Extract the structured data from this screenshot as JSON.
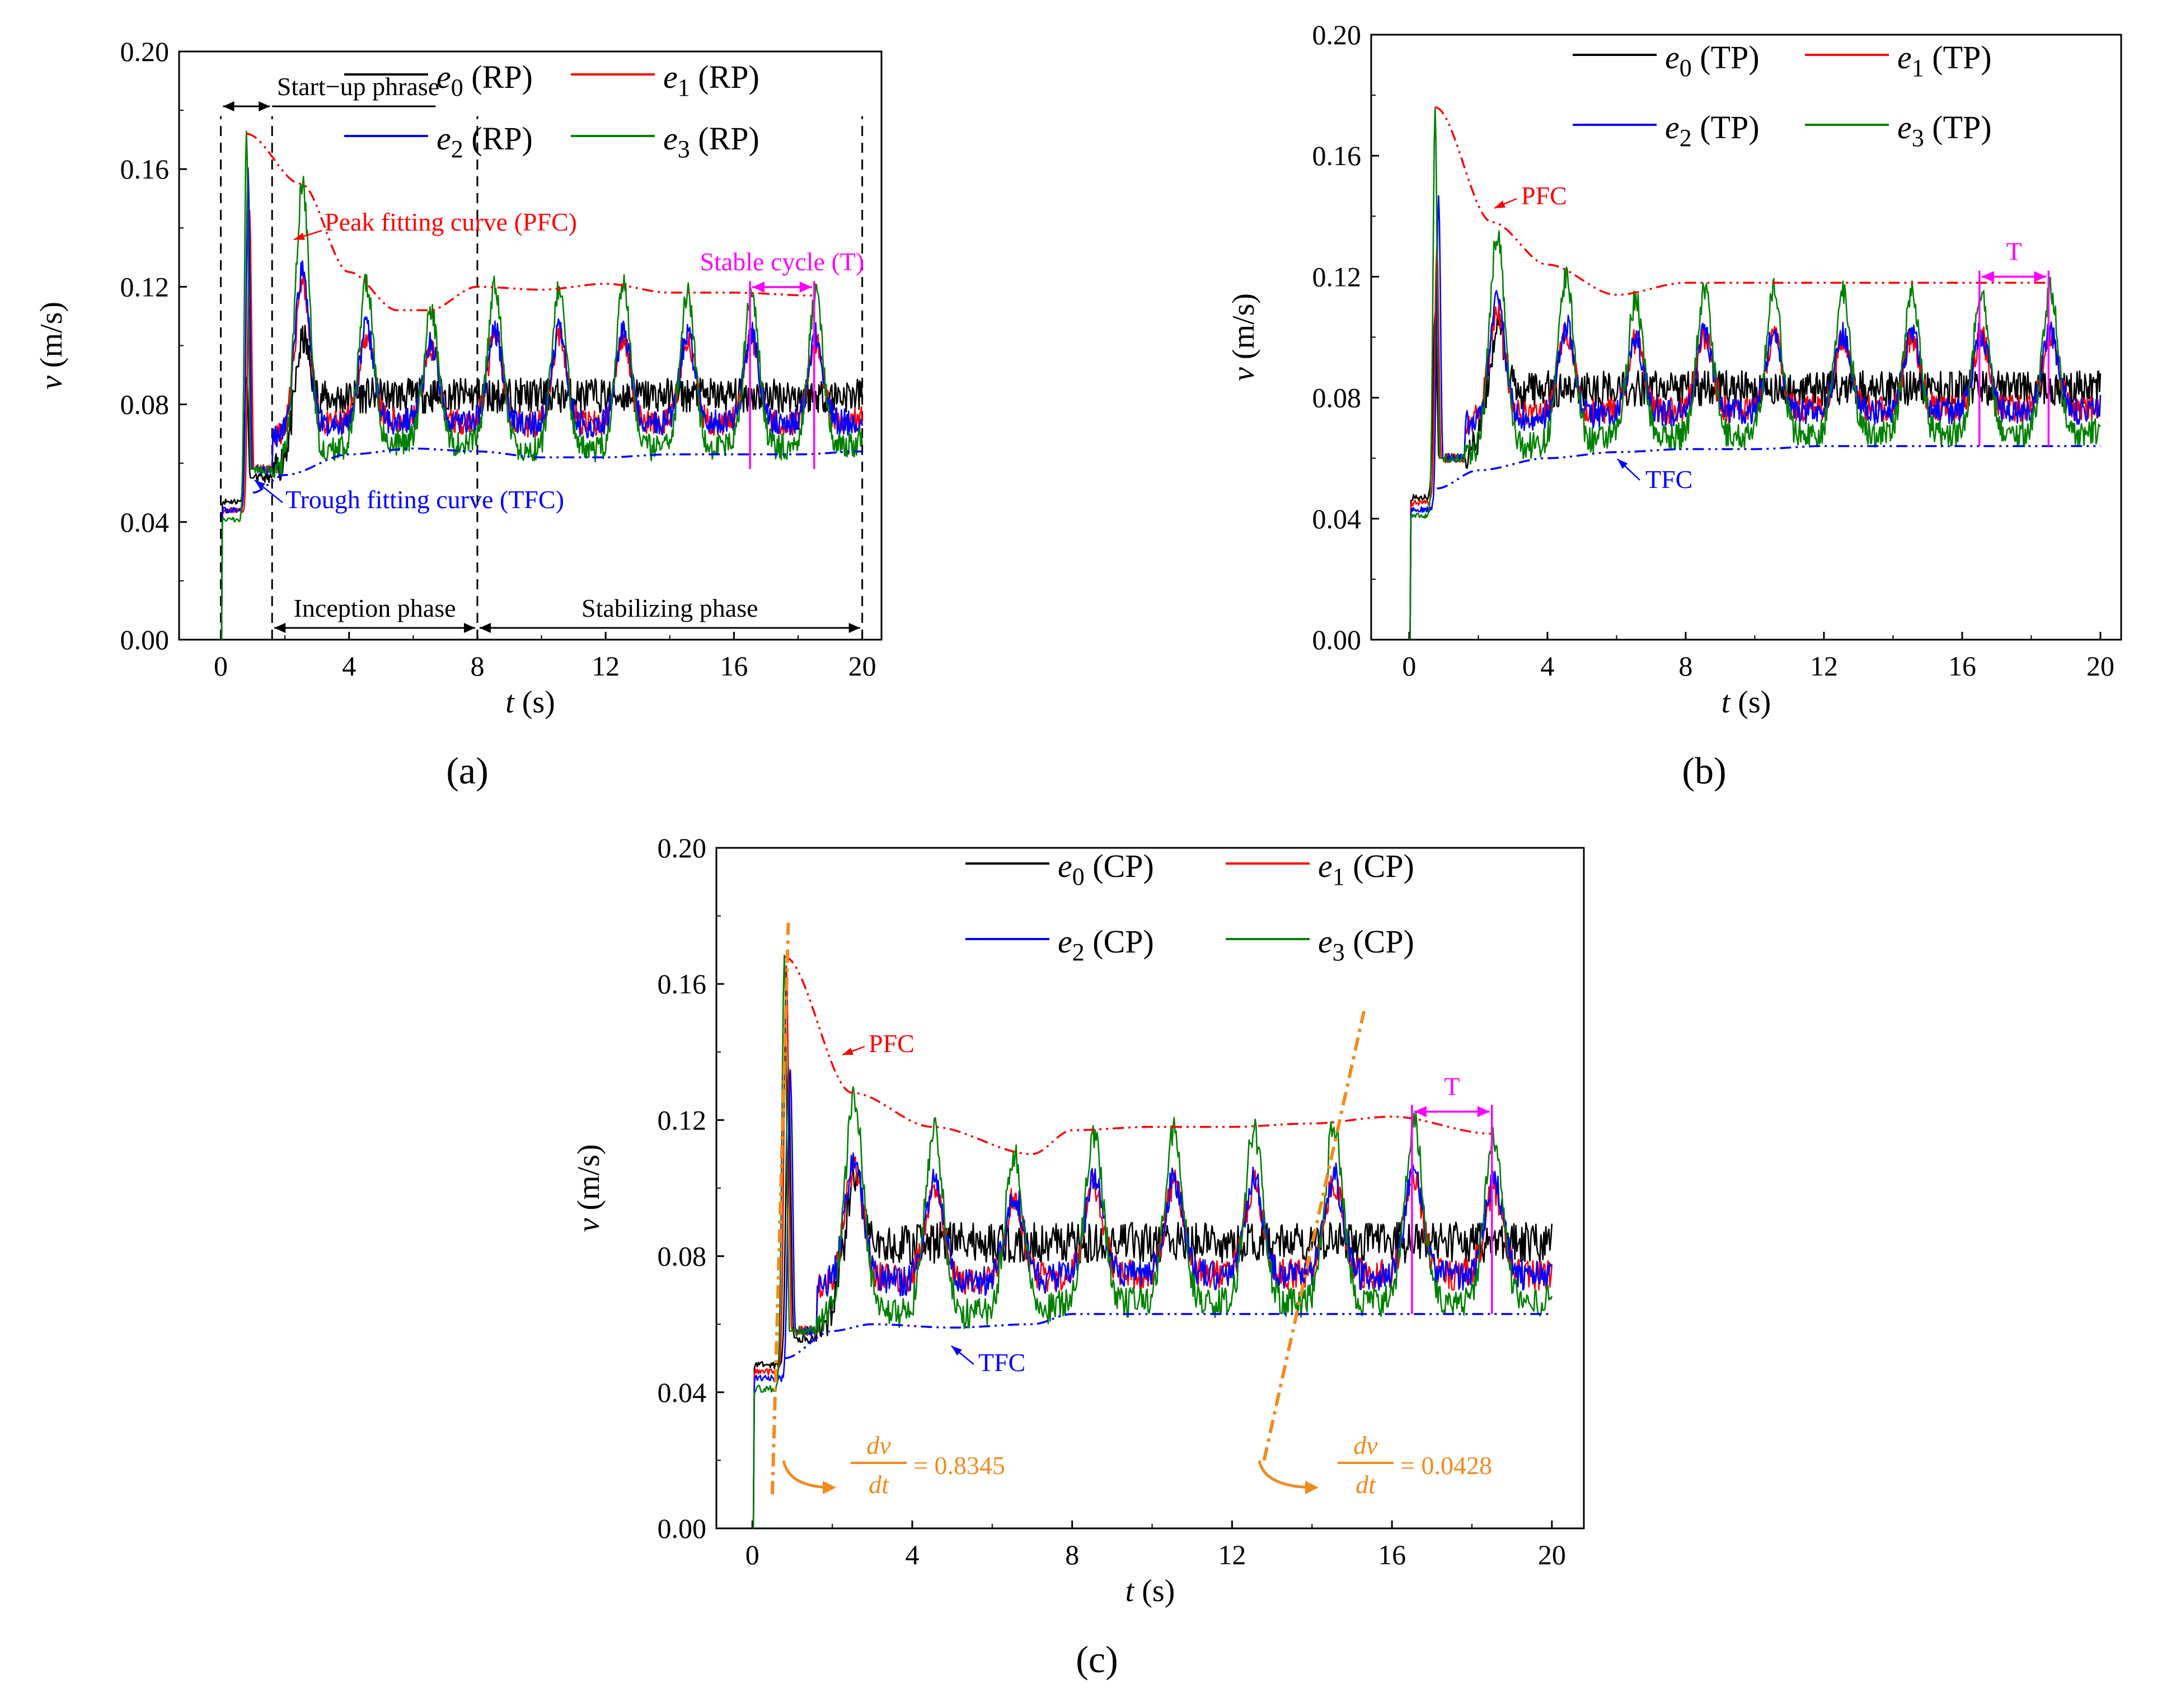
{
  "chart_data": [
    {
      "id": "a",
      "type": "line",
      "panel_label": "(a)",
      "xlabel": {
        "var": "t",
        "unit": "(s)"
      },
      "ylabel": {
        "var": "v",
        "unit": "(m/s)"
      },
      "xlim": [
        -1.3,
        20.6
      ],
      "ylim": [
        0,
        0.2
      ],
      "xticks": [
        "0",
        "4",
        "8",
        "12",
        "16",
        "20"
      ],
      "yticks": [
        "0.00",
        "0.04",
        "0.08",
        "0.12",
        "0.16",
        "0.20"
      ],
      "legend": [
        {
          "sym": "e",
          "sub": "0",
          "suffix": "(RP)",
          "color": "#000000"
        },
        {
          "sym": "e",
          "sub": "1",
          "suffix": "(RP)",
          "color": "#ff0000"
        },
        {
          "sym": "e",
          "sub": "2",
          "suffix": "(RP)",
          "color": "#0000ff"
        },
        {
          "sym": "e",
          "sub": "3",
          "suffix": "(RP)",
          "color": "#008000"
        }
      ],
      "series": [
        {
          "name": "e0",
          "color": "#000000",
          "start": 0.047,
          "peak1": 0.09,
          "peak1_t": 0.8,
          "pre": 0.047,
          "post_early": 0.055,
          "mean": 0.083,
          "amp": 0.004,
          "seed": 11
        },
        {
          "name": "e1",
          "color": "#ff0000",
          "start": 0.044,
          "peak1": 0.145,
          "peak1_t": 0.9,
          "pre": 0.044,
          "post_early": 0.058,
          "mean": 0.084,
          "amp": 0.014,
          "seed": 23
        },
        {
          "name": "e2",
          "color": "#0000ff",
          "start": 0.044,
          "peak1": 0.16,
          "peak1_t": 0.85,
          "pre": 0.044,
          "post_early": 0.058,
          "mean": 0.085,
          "amp": 0.015,
          "seed": 37
        },
        {
          "name": "e3",
          "color": "#008000",
          "start": 0.041,
          "peak1": 0.173,
          "peak1_t": 0.8,
          "pre": 0.041,
          "post_early": 0.058,
          "mean": 0.088,
          "amp": 0.026,
          "seed": 51
        }
      ],
      "peak_curve": {
        "color": "#ff0000",
        "points": [
          [
            0.8,
            0.172
          ],
          [
            2.5,
            0.155
          ],
          [
            4,
            0.125
          ],
          [
            5.5,
            0.112
          ],
          [
            6.5,
            0.112
          ],
          [
            8,
            0.12
          ],
          [
            10,
            0.119
          ],
          [
            12,
            0.121
          ],
          [
            14,
            0.118
          ],
          [
            16,
            0.118
          ],
          [
            18.5,
            0.117
          ]
        ]
      },
      "trough_curve": {
        "color": "#0000ff",
        "points": [
          [
            1,
            0.05
          ],
          [
            2,
            0.056
          ],
          [
            4,
            0.063
          ],
          [
            6,
            0.065
          ],
          [
            8,
            0.064
          ],
          [
            10,
            0.062
          ],
          [
            12,
            0.062
          ],
          [
            14,
            0.063
          ],
          [
            16,
            0.063
          ],
          [
            18,
            0.063
          ],
          [
            20,
            0.064
          ]
        ]
      },
      "phase_lines_t": [
        0,
        1.6,
        8,
        20
      ],
      "annotations": {
        "startup": "Start−up phrase",
        "inception": "Inception phase",
        "stabilizing": "Stabilizing phase",
        "peak_label": "Peak fitting curve (PFC)",
        "trough_label": "Trough fitting curve (TFC)",
        "cycle_label": "Stable cycle (T)"
      },
      "cycle_t": [
        16.5,
        18.5
      ],
      "cycle_color": "#ff00ff"
    },
    {
      "id": "b",
      "type": "line",
      "panel_label": "(b)",
      "xlabel": {
        "var": "t",
        "unit": "(s)"
      },
      "ylabel": {
        "var": "v",
        "unit": "(m/s)"
      },
      "xlim": [
        -1.1,
        20.6
      ],
      "ylim": [
        0,
        0.2
      ],
      "xticks": [
        "0",
        "4",
        "8",
        "12",
        "16",
        "20"
      ],
      "yticks": [
        "0.00",
        "0.04",
        "0.08",
        "0.12",
        "0.16",
        "0.20"
      ],
      "legend": [
        {
          "sym": "e",
          "sub": "0",
          "suffix": "(TP)",
          "color": "#000000"
        },
        {
          "sym": "e",
          "sub": "1",
          "suffix": "(TP)",
          "color": "#ff0000"
        },
        {
          "sym": "e",
          "sub": "2",
          "suffix": "(TP)",
          "color": "#0000ff"
        },
        {
          "sym": "e",
          "sub": "3",
          "suffix": "(TP)",
          "color": "#008000"
        }
      ],
      "series": [
        {
          "name": "e0",
          "color": "#000000",
          "start": 0.047,
          "peak1": 0.108,
          "peak1_t": 0.75,
          "pre": 0.047,
          "post_early": 0.06,
          "mean": 0.083,
          "amp": 0.004,
          "seed": 61
        },
        {
          "name": "e1",
          "color": "#ff0000",
          "start": 0.045,
          "peak1": 0.13,
          "peak1_t": 0.8,
          "pre": 0.045,
          "post_early": 0.06,
          "mean": 0.085,
          "amp": 0.012,
          "seed": 73
        },
        {
          "name": "e2",
          "color": "#0000ff",
          "start": 0.043,
          "peak1": 0.147,
          "peak1_t": 0.85,
          "pre": 0.043,
          "post_early": 0.06,
          "mean": 0.085,
          "amp": 0.013,
          "seed": 89
        },
        {
          "name": "e3",
          "color": "#008000",
          "start": 0.041,
          "peak1": 0.176,
          "peak1_t": 0.75,
          "pre": 0.041,
          "post_early": 0.06,
          "mean": 0.088,
          "amp": 0.024,
          "seed": 97
        }
      ],
      "peak_curve": {
        "color": "#ff0000",
        "points": [
          [
            0.75,
            0.176
          ],
          [
            2.4,
            0.138
          ],
          [
            4,
            0.124
          ],
          [
            6,
            0.114
          ],
          [
            8,
            0.118
          ],
          [
            10,
            0.118
          ],
          [
            12,
            0.118
          ],
          [
            14,
            0.118
          ],
          [
            16,
            0.118
          ],
          [
            18.5,
            0.118
          ]
        ]
      },
      "trough_curve": {
        "color": "#0000ff",
        "points": [
          [
            0.8,
            0.05
          ],
          [
            2,
            0.056
          ],
          [
            4,
            0.06
          ],
          [
            6,
            0.062
          ],
          [
            8,
            0.063
          ],
          [
            10,
            0.063
          ],
          [
            12,
            0.064
          ],
          [
            14,
            0.064
          ],
          [
            16,
            0.064
          ],
          [
            18,
            0.064
          ],
          [
            20,
            0.064
          ]
        ]
      },
      "annotations": {
        "peak_label": "PFC",
        "trough_label": "TFC",
        "cycle_label": "T"
      },
      "cycle_t": [
        16.5,
        18.5
      ],
      "cycle_color": "#ff00ff"
    },
    {
      "id": "c",
      "type": "line",
      "panel_label": "(c)",
      "xlabel": {
        "var": "t",
        "unit": "(s)"
      },
      "ylabel": {
        "var": "v",
        "unit": "(m/s)"
      },
      "xlim": [
        -0.9,
        20.8
      ],
      "ylim": [
        0,
        0.2
      ],
      "xticks": [
        "0",
        "4",
        "8",
        "12",
        "16",
        "20"
      ],
      "yticks": [
        "0.00",
        "0.04",
        "0.08",
        "0.12",
        "0.16",
        "0.20"
      ],
      "legend": [
        {
          "sym": "e",
          "sub": "0",
          "suffix": "(CP)",
          "color": "#000000"
        },
        {
          "sym": "e",
          "sub": "1",
          "suffix": "(CP)",
          "color": "#ff0000"
        },
        {
          "sym": "e",
          "sub": "2",
          "suffix": "(CP)",
          "color": "#0000ff"
        },
        {
          "sym": "e",
          "sub": "3",
          "suffix": "(CP)",
          "color": "#008000"
        }
      ],
      "series": [
        {
          "name": "e0",
          "color": "#000000",
          "start": 0.048,
          "peak1": 0.135,
          "peak1_t": 0.9,
          "pre": 0.048,
          "post_early": 0.056,
          "mean": 0.084,
          "amp": 0.004,
          "seed": 103
        },
        {
          "name": "e1",
          "color": "#ff0000",
          "start": 0.046,
          "peak1": 0.165,
          "peak1_t": 0.85,
          "pre": 0.046,
          "post_early": 0.058,
          "mean": 0.084,
          "amp": 0.013,
          "seed": 113
        },
        {
          "name": "e2",
          "color": "#0000ff",
          "start": 0.044,
          "peak1": 0.135,
          "peak1_t": 0.95,
          "pre": 0.044,
          "post_early": 0.058,
          "mean": 0.085,
          "amp": 0.014,
          "seed": 127
        },
        {
          "name": "e3",
          "color": "#008000",
          "start": 0.041,
          "peak1": 0.168,
          "peak1_t": 0.8,
          "pre": 0.041,
          "post_early": 0.058,
          "mean": 0.088,
          "amp": 0.025,
          "seed": 137
        }
      ],
      "peak_curve": {
        "color": "#ff0000",
        "points": [
          [
            0.8,
            0.168
          ],
          [
            2.5,
            0.128
          ],
          [
            4.5,
            0.118
          ],
          [
            7,
            0.11
          ],
          [
            8,
            0.117
          ],
          [
            10,
            0.118
          ],
          [
            12,
            0.118
          ],
          [
            14,
            0.119
          ],
          [
            16,
            0.121
          ],
          [
            18.5,
            0.116
          ]
        ]
      },
      "trough_curve": {
        "color": "#0000ff",
        "points": [
          [
            0.8,
            0.05
          ],
          [
            2,
            0.058
          ],
          [
            3,
            0.06
          ],
          [
            5,
            0.059
          ],
          [
            7,
            0.06
          ],
          [
            8,
            0.063
          ],
          [
            10,
            0.063
          ],
          [
            12,
            0.063
          ],
          [
            14,
            0.063
          ],
          [
            16,
            0.063
          ],
          [
            18,
            0.063
          ],
          [
            20,
            0.063
          ]
        ]
      },
      "annotations": {
        "peak_label": "PFC",
        "trough_label": "TFC",
        "cycle_label": "T"
      },
      "cycle_t": [
        16.5,
        18.5
      ],
      "cycle_color": "#ff00ff",
      "slopes": [
        {
          "label_num": "dv",
          "label_den": "dt",
          "value": "= 0.8345",
          "line": [
            [
              0.5,
              0.01
            ],
            [
              0.9,
              0.178
            ]
          ]
        },
        {
          "label_num": "dv",
          "label_den": "dt",
          "value": "= 0.0428",
          "line": [
            [
              12.8,
              0.02
            ],
            [
              15.3,
              0.152
            ]
          ]
        }
      ],
      "slope_color": "#f28a1e"
    }
  ]
}
